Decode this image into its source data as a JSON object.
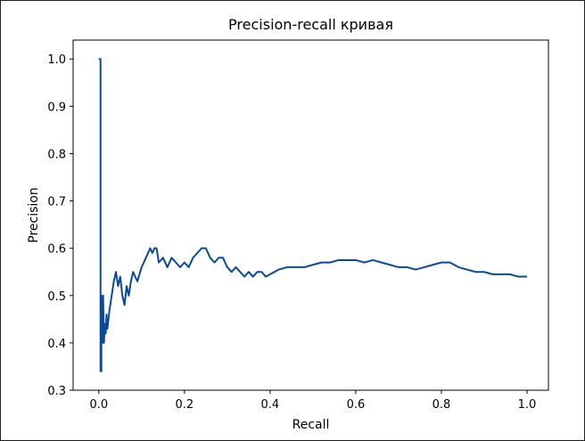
{
  "chart_data": {
    "type": "line",
    "title": "Precision-recall кривая",
    "xlabel": "Recall",
    "ylabel": "Precision",
    "xlim": [
      -0.06,
      1.05
    ],
    "ylim": [
      0.3,
      1.04
    ],
    "xticks": [
      0.0,
      0.2,
      0.4,
      0.6,
      0.8,
      1.0
    ],
    "xtick_labels": [
      "0.0",
      "0.2",
      "0.4",
      "0.6",
      "0.8",
      "1.0"
    ],
    "yticks": [
      0.3,
      0.4,
      0.5,
      0.6,
      0.7,
      0.8,
      0.9,
      1.0
    ],
    "ytick_labels": [
      "0.3",
      "0.4",
      "0.5",
      "0.6",
      "0.7",
      "0.8",
      "0.9",
      "1.0"
    ],
    "grid": false,
    "line_color": "#0a4a9a",
    "series": [
      {
        "name": "",
        "points": [
          [
            0.0,
            1.0
          ],
          [
            0.004,
            1.0
          ],
          [
            0.004,
            0.34
          ],
          [
            0.006,
            0.34
          ],
          [
            0.006,
            0.5
          ],
          [
            0.008,
            0.4
          ],
          [
            0.01,
            0.5
          ],
          [
            0.012,
            0.4
          ],
          [
            0.014,
            0.44
          ],
          [
            0.016,
            0.42
          ],
          [
            0.018,
            0.46
          ],
          [
            0.02,
            0.43
          ],
          [
            0.025,
            0.47
          ],
          [
            0.03,
            0.5
          ],
          [
            0.035,
            0.53
          ],
          [
            0.04,
            0.55
          ],
          [
            0.045,
            0.52
          ],
          [
            0.05,
            0.54
          ],
          [
            0.055,
            0.5
          ],
          [
            0.06,
            0.48
          ],
          [
            0.065,
            0.52
          ],
          [
            0.07,
            0.5
          ],
          [
            0.075,
            0.53
          ],
          [
            0.08,
            0.55
          ],
          [
            0.09,
            0.53
          ],
          [
            0.1,
            0.56
          ],
          [
            0.11,
            0.58
          ],
          [
            0.12,
            0.6
          ],
          [
            0.125,
            0.59
          ],
          [
            0.13,
            0.6
          ],
          [
            0.135,
            0.6
          ],
          [
            0.14,
            0.57
          ],
          [
            0.15,
            0.58
          ],
          [
            0.16,
            0.56
          ],
          [
            0.17,
            0.58
          ],
          [
            0.18,
            0.57
          ],
          [
            0.19,
            0.56
          ],
          [
            0.2,
            0.57
          ],
          [
            0.21,
            0.56
          ],
          [
            0.22,
            0.58
          ],
          [
            0.23,
            0.59
          ],
          [
            0.24,
            0.6
          ],
          [
            0.25,
            0.6
          ],
          [
            0.26,
            0.58
          ],
          [
            0.27,
            0.57
          ],
          [
            0.28,
            0.58
          ],
          [
            0.29,
            0.58
          ],
          [
            0.3,
            0.56
          ],
          [
            0.31,
            0.55
          ],
          [
            0.32,
            0.56
          ],
          [
            0.33,
            0.55
          ],
          [
            0.34,
            0.54
          ],
          [
            0.35,
            0.55
          ],
          [
            0.36,
            0.54
          ],
          [
            0.37,
            0.55
          ],
          [
            0.38,
            0.55
          ],
          [
            0.39,
            0.54
          ],
          [
            0.4,
            0.545
          ],
          [
            0.41,
            0.55
          ],
          [
            0.42,
            0.555
          ],
          [
            0.44,
            0.56
          ],
          [
            0.46,
            0.56
          ],
          [
            0.48,
            0.56
          ],
          [
            0.5,
            0.565
          ],
          [
            0.52,
            0.57
          ],
          [
            0.54,
            0.57
          ],
          [
            0.56,
            0.575
          ],
          [
            0.58,
            0.575
          ],
          [
            0.6,
            0.575
          ],
          [
            0.62,
            0.57
          ],
          [
            0.64,
            0.575
          ],
          [
            0.66,
            0.57
          ],
          [
            0.68,
            0.565
          ],
          [
            0.7,
            0.56
          ],
          [
            0.72,
            0.56
          ],
          [
            0.74,
            0.555
          ],
          [
            0.76,
            0.56
          ],
          [
            0.78,
            0.565
          ],
          [
            0.8,
            0.57
          ],
          [
            0.82,
            0.57
          ],
          [
            0.84,
            0.56
          ],
          [
            0.86,
            0.555
          ],
          [
            0.88,
            0.55
          ],
          [
            0.9,
            0.55
          ],
          [
            0.92,
            0.545
          ],
          [
            0.94,
            0.545
          ],
          [
            0.96,
            0.545
          ],
          [
            0.98,
            0.54
          ],
          [
            1.0,
            0.54
          ]
        ]
      }
    ]
  }
}
